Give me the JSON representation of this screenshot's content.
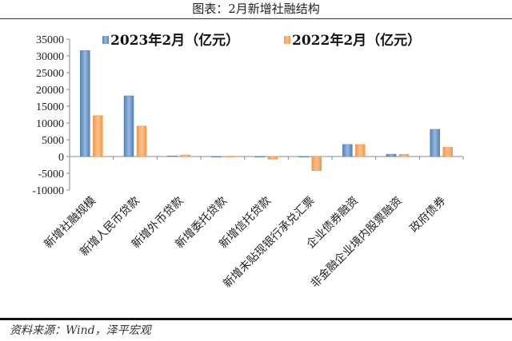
{
  "header": {
    "title": "图表：2月新增社融结构"
  },
  "footer": {
    "source": "资料来源：Wind，泽平宏观"
  },
  "chart_data": {
    "type": "bar",
    "title": "图表：2月新增社融结构",
    "xlabel": "",
    "ylabel": "",
    "ylim": [
      -10000,
      35000
    ],
    "yticks": [
      -10000,
      -5000,
      0,
      5000,
      10000,
      15000,
      20000,
      25000,
      30000,
      35000
    ],
    "grid": false,
    "legend_position": "top",
    "categories": [
      "新增社融规模",
      "新增人民币贷款",
      "新增外币贷款",
      "新增委托贷款",
      "新增信托贷款",
      "新增未贴现银行承兑汇票",
      "企业债券融资",
      "非金融企业境内股票融资",
      "政府债券"
    ],
    "series": [
      {
        "name": "2023年2月（亿元）",
        "color": "#4f81bd",
        "values": [
          31600,
          18100,
          200,
          -10,
          -50,
          -150,
          3600,
          700,
          8100
        ]
      },
      {
        "name": "2022年2月（亿元）",
        "color": "#f79646",
        "values": [
          12200,
          9100,
          450,
          -50,
          -800,
          -4200,
          3600,
          650,
          2750
        ]
      }
    ]
  }
}
